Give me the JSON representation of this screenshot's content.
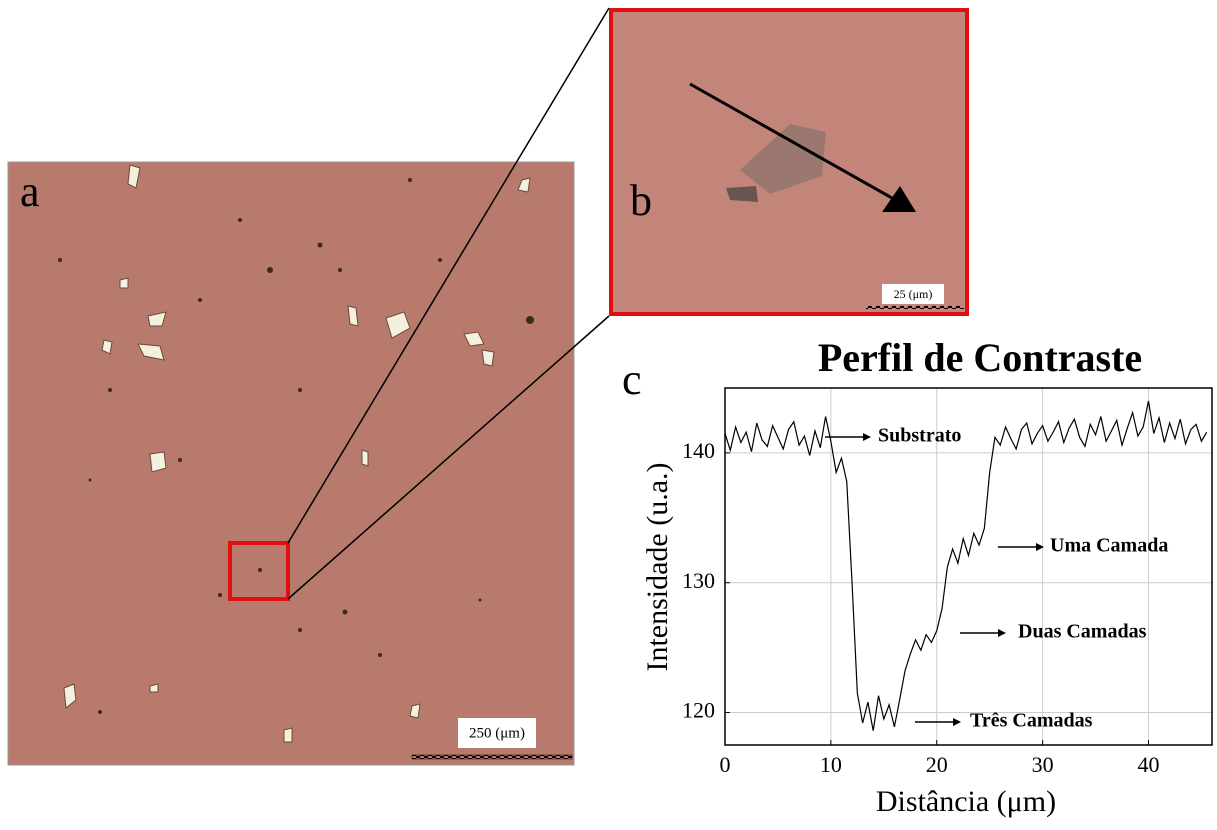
{
  "panels": {
    "a": {
      "label": "a",
      "scale_bar": "250 (μm)"
    },
    "b": {
      "label": "b",
      "scale_bar": "25 (μm)"
    },
    "c": {
      "label": "c"
    }
  },
  "chart_data": {
    "type": "line",
    "title": "Perfil de Contraste",
    "x_label": "Distância (μm)",
    "y_label": "Intensidade (u.a.)",
    "xlim": [
      0,
      46
    ],
    "ylim": [
      117.5,
      145
    ],
    "xticks": [
      0,
      10,
      20,
      30,
      40
    ],
    "yticks": [
      120,
      130,
      140
    ],
    "grid": true,
    "color": "#000000",
    "annotations": [
      "Substrato",
      "Uma Camada",
      "Duas Camadas",
      "Três Camadas"
    ],
    "x": [
      0,
      0.5,
      1,
      1.5,
      2,
      2.5,
      3,
      3.5,
      4,
      4.5,
      5,
      5.5,
      6,
      6.5,
      7,
      7.5,
      8,
      8.5,
      9,
      9.5,
      10,
      10.5,
      11,
      11.5,
      12,
      12.5,
      13,
      13.5,
      14,
      14.5,
      15,
      15.5,
      16,
      16.5,
      17,
      17.5,
      18,
      18.5,
      19,
      19.5,
      20,
      20.5,
      21,
      21.5,
      22,
      22.5,
      23,
      23.5,
      24,
      24.5,
      25,
      25.5,
      26,
      26.5,
      27,
      27.5,
      28,
      28.5,
      29,
      29.5,
      30,
      30.5,
      31,
      31.5,
      32,
      32.5,
      33,
      33.5,
      34,
      34.5,
      35,
      35.5,
      36,
      36.5,
      37,
      37.5,
      38,
      38.5,
      39,
      39.5,
      40,
      40.5,
      41,
      41.5,
      42,
      42.5,
      43,
      43.5,
      44,
      44.5,
      45,
      45.5
    ],
    "values": [
      141.5,
      140.2,
      142.0,
      140.8,
      141.6,
      140.1,
      142.3,
      141.0,
      140.5,
      142.1,
      141.2,
      140.3,
      141.8,
      142.4,
      140.6,
      141.3,
      139.8,
      141.7,
      140.4,
      142.8,
      140.9,
      138.5,
      139.6,
      137.8,
      130.0,
      121.5,
      119.2,
      120.8,
      118.6,
      121.3,
      119.5,
      120.6,
      118.9,
      121.0,
      123.2,
      124.5,
      125.6,
      124.8,
      126.0,
      125.4,
      126.3,
      128.0,
      131.2,
      132.6,
      131.5,
      133.4,
      132.1,
      133.8,
      132.9,
      134.2,
      138.5,
      141.2,
      140.6,
      142.0,
      141.1,
      140.3,
      141.8,
      142.3,
      140.7,
      141.5,
      142.1,
      140.9,
      141.6,
      142.4,
      140.8,
      141.9,
      142.6,
      141.2,
      140.5,
      142.2,
      141.4,
      142.8,
      140.9,
      141.7,
      142.5,
      140.6,
      141.9,
      143.1,
      141.3,
      142.0,
      144.0,
      141.5,
      142.7,
      140.8,
      142.3,
      141.1,
      142.6,
      140.7,
      141.8,
      142.2,
      140.9,
      141.6
    ]
  }
}
